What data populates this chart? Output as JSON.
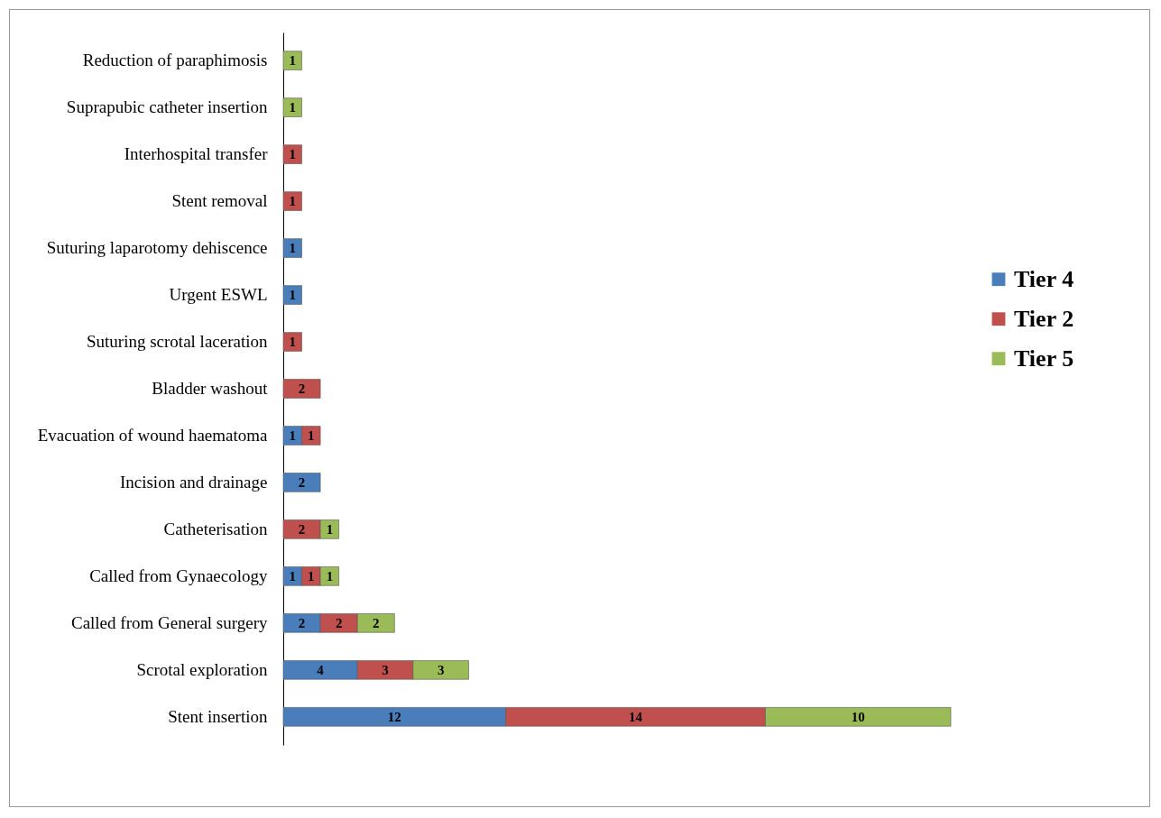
{
  "chart_data": {
    "type": "bar",
    "orientation": "horizontal",
    "stacked": true,
    "data_labels": true,
    "legend": "right",
    "grid": false,
    "categories": [
      "Reduction of paraphimosis",
      "Suprapubic catheter insertion",
      "Interhospital transfer",
      "Stent removal",
      "Suturing laparotomy dehiscence",
      "Urgent ESWL",
      "Suturing scrotal laceration",
      "Bladder washout",
      "Evacuation of wound haematoma",
      "Incision and drainage",
      "Catheterisation",
      "Called from Gynaecology",
      "Called from General surgery",
      "Scrotal exploration",
      "Stent insertion"
    ],
    "series": [
      {
        "name": "Tier 4",
        "color": "#4a7ebb",
        "values": [
          null,
          null,
          null,
          null,
          1,
          1,
          null,
          null,
          1,
          2,
          null,
          1,
          2,
          4,
          12
        ]
      },
      {
        "name": "Tier 2",
        "color": "#c0504d",
        "values": [
          null,
          null,
          1,
          1,
          null,
          null,
          1,
          2,
          1,
          null,
          2,
          1,
          2,
          3,
          14
        ]
      },
      {
        "name": "Tier 5",
        "color": "#9bbb59",
        "values": [
          1,
          1,
          null,
          null,
          null,
          null,
          null,
          null,
          null,
          null,
          1,
          1,
          2,
          3,
          10
        ]
      }
    ]
  }
}
